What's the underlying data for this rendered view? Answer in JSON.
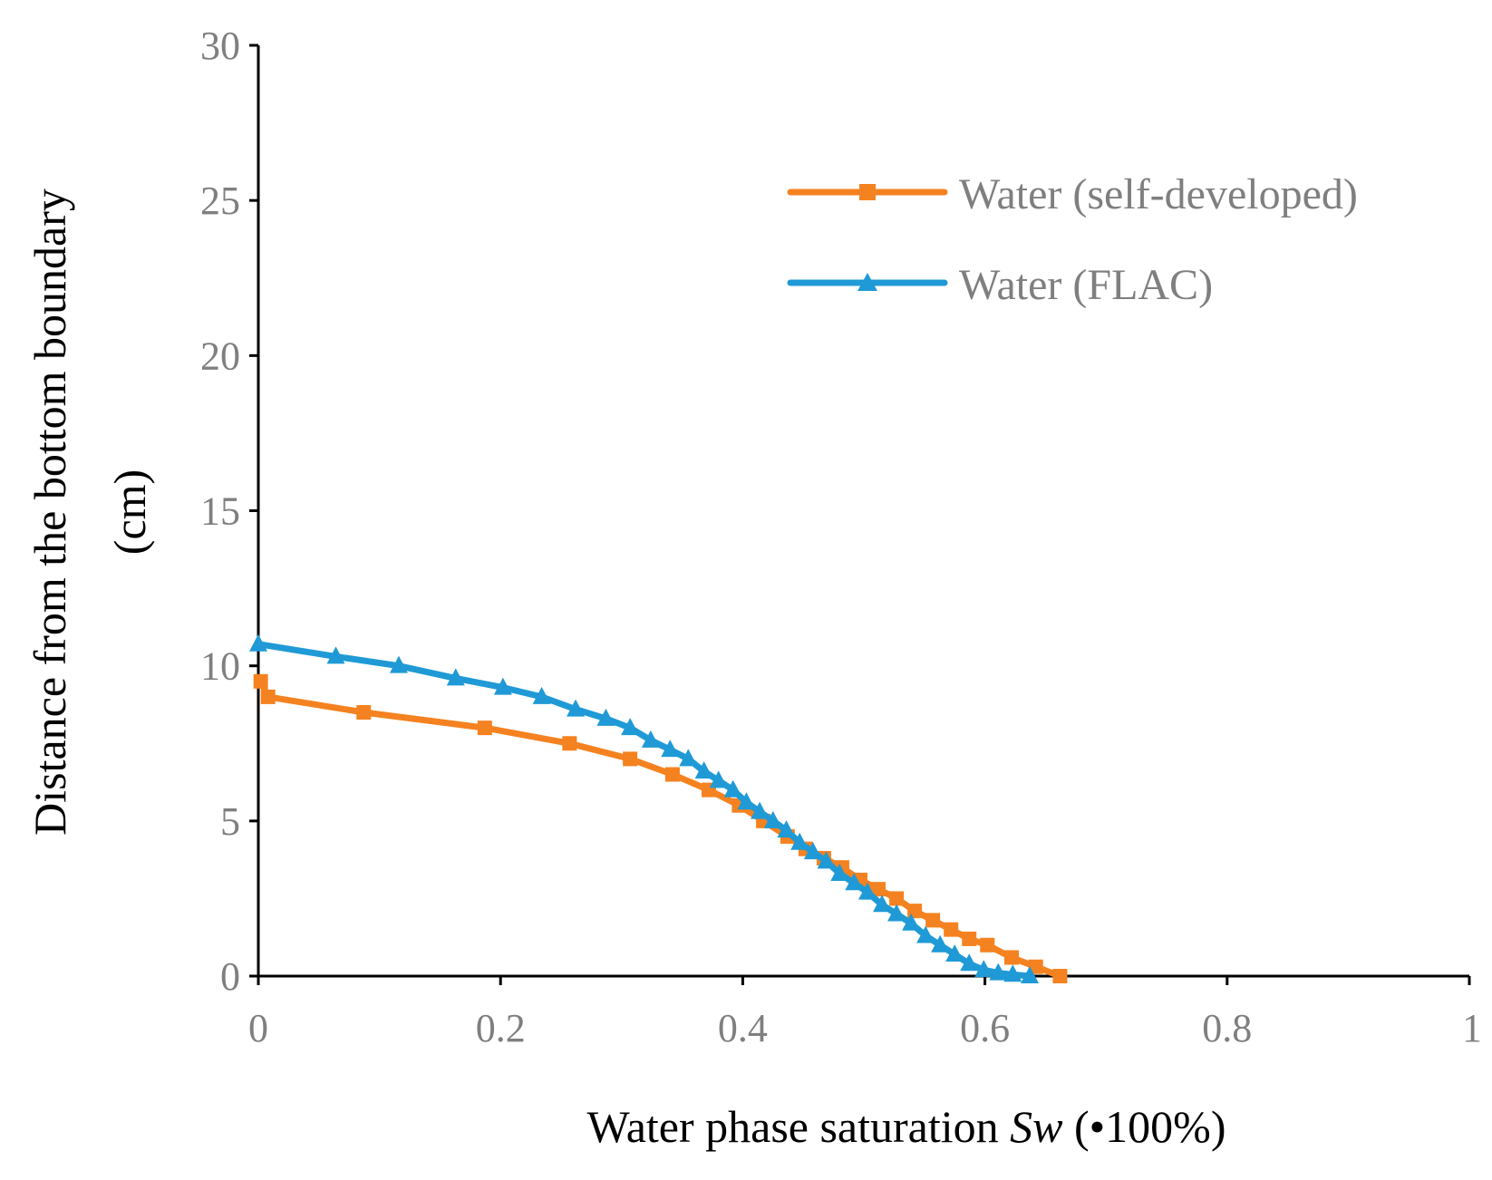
{
  "chart_data": {
    "type": "line",
    "title": "",
    "xlabel_main": "Water phase saturation ",
    "xlabel_italic": "Sw",
    "xlabel_suffix": " (•100%)",
    "ylabel_line1": "Distance from the bottom boundary",
    "ylabel_line2": "(cm)",
    "xlim": [
      0,
      1
    ],
    "ylim": [
      0,
      30
    ],
    "x_ticks": [
      0,
      0.2,
      0.4,
      0.6,
      0.8,
      1
    ],
    "x_tick_labels": [
      "0",
      "0.2",
      "0.4",
      "0.6",
      "0.8",
      "1"
    ],
    "y_ticks": [
      0,
      5,
      10,
      15,
      20,
      25,
      30
    ],
    "y_tick_labels": [
      "0",
      "5",
      "10",
      "15",
      "20",
      "25",
      "30"
    ],
    "grid": false,
    "legend_position": "top-right",
    "series": [
      {
        "name": "Water (self-developed)",
        "color": "#f58220",
        "marker": "square",
        "x": [
          0.002,
          0.008,
          0.087,
          0.187,
          0.257,
          0.307,
          0.342,
          0.372,
          0.397,
          0.417,
          0.437,
          0.452,
          0.467,
          0.482,
          0.497,
          0.512,
          0.527,
          0.542,
          0.557,
          0.572,
          0.587,
          0.602,
          0.622,
          0.642,
          0.662
        ],
        "y": [
          9.5,
          9.0,
          8.5,
          8.0,
          7.5,
          7.0,
          6.5,
          6.0,
          5.5,
          5.0,
          4.5,
          4.1,
          3.8,
          3.5,
          3.1,
          2.8,
          2.5,
          2.1,
          1.8,
          1.5,
          1.2,
          1.0,
          0.6,
          0.3,
          0.0
        ]
      },
      {
        "name": "Water (FLAC)",
        "color": "#1f9ad6",
        "marker": "triangle",
        "x": [
          0.0,
          0.064,
          0.116,
          0.163,
          0.202,
          0.234,
          0.262,
          0.287,
          0.307,
          0.324,
          0.34,
          0.355,
          0.368,
          0.38,
          0.392,
          0.403,
          0.414,
          0.425,
          0.436,
          0.447,
          0.458,
          0.469,
          0.48,
          0.492,
          0.503,
          0.515,
          0.527,
          0.539,
          0.551,
          0.563,
          0.575,
          0.587,
          0.599,
          0.611,
          0.623,
          0.637
        ],
        "y": [
          10.7,
          10.3,
          10.0,
          9.6,
          9.3,
          9.0,
          8.6,
          8.3,
          8.0,
          7.6,
          7.3,
          7.0,
          6.6,
          6.3,
          6.0,
          5.6,
          5.3,
          5.0,
          4.7,
          4.3,
          4.0,
          3.7,
          3.3,
          3.0,
          2.7,
          2.3,
          2.0,
          1.7,
          1.3,
          1.0,
          0.7,
          0.4,
          0.2,
          0.1,
          0.05,
          0.0
        ]
      }
    ]
  }
}
